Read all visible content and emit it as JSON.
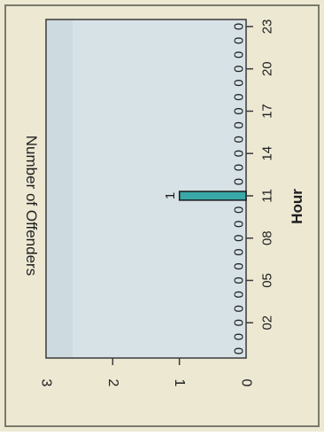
{
  "chart_data": {
    "type": "bar",
    "orientation": "rotated 90° clockwise (hour axis runs top-to-bottom on the right)",
    "x": [
      0,
      1,
      2,
      3,
      4,
      5,
      6,
      7,
      8,
      9,
      10,
      11,
      12,
      13,
      14,
      15,
      16,
      17,
      18,
      19,
      20,
      21,
      22,
      23
    ],
    "values": [
      0,
      0,
      0,
      0,
      0,
      0,
      0,
      0,
      0,
      0,
      0,
      1,
      0,
      0,
      0,
      0,
      0,
      0,
      0,
      0,
      0,
      0,
      0,
      0
    ],
    "data_labels": [
      "0",
      "0",
      "0",
      "0",
      "0",
      "0",
      "0",
      "0",
      "0",
      "0",
      "0",
      "1",
      "0",
      "0",
      "0",
      "0",
      "0",
      "0",
      "0",
      "0",
      "0",
      "0",
      "0",
      "0"
    ],
    "xlabel": "Hour",
    "ylabel": "Number of Offenders",
    "xtick_labels": [
      "02",
      "05",
      "08",
      "11",
      "14",
      "17",
      "20",
      "23"
    ],
    "xtick_values": [
      2,
      5,
      8,
      11,
      14,
      17,
      20,
      23
    ],
    "ytick_labels": [
      "0",
      "1",
      "2",
      "3"
    ],
    "ytick_values": [
      0,
      1,
      2,
      3
    ],
    "ylim": [
      0,
      3
    ],
    "xlim": [
      -0.5,
      23.5
    ],
    "grid": false,
    "legend": "none",
    "colors": {
      "bar_fill": "#3aa8a8",
      "bar_stroke": "#1a1a1a",
      "plot_bg_light": "#d7e2e6",
      "plot_bg_dark": "#c4d3d8",
      "page_bg": "#ece8d2",
      "frame": "#3a3a3a",
      "text": "#1e1e1e"
    }
  }
}
